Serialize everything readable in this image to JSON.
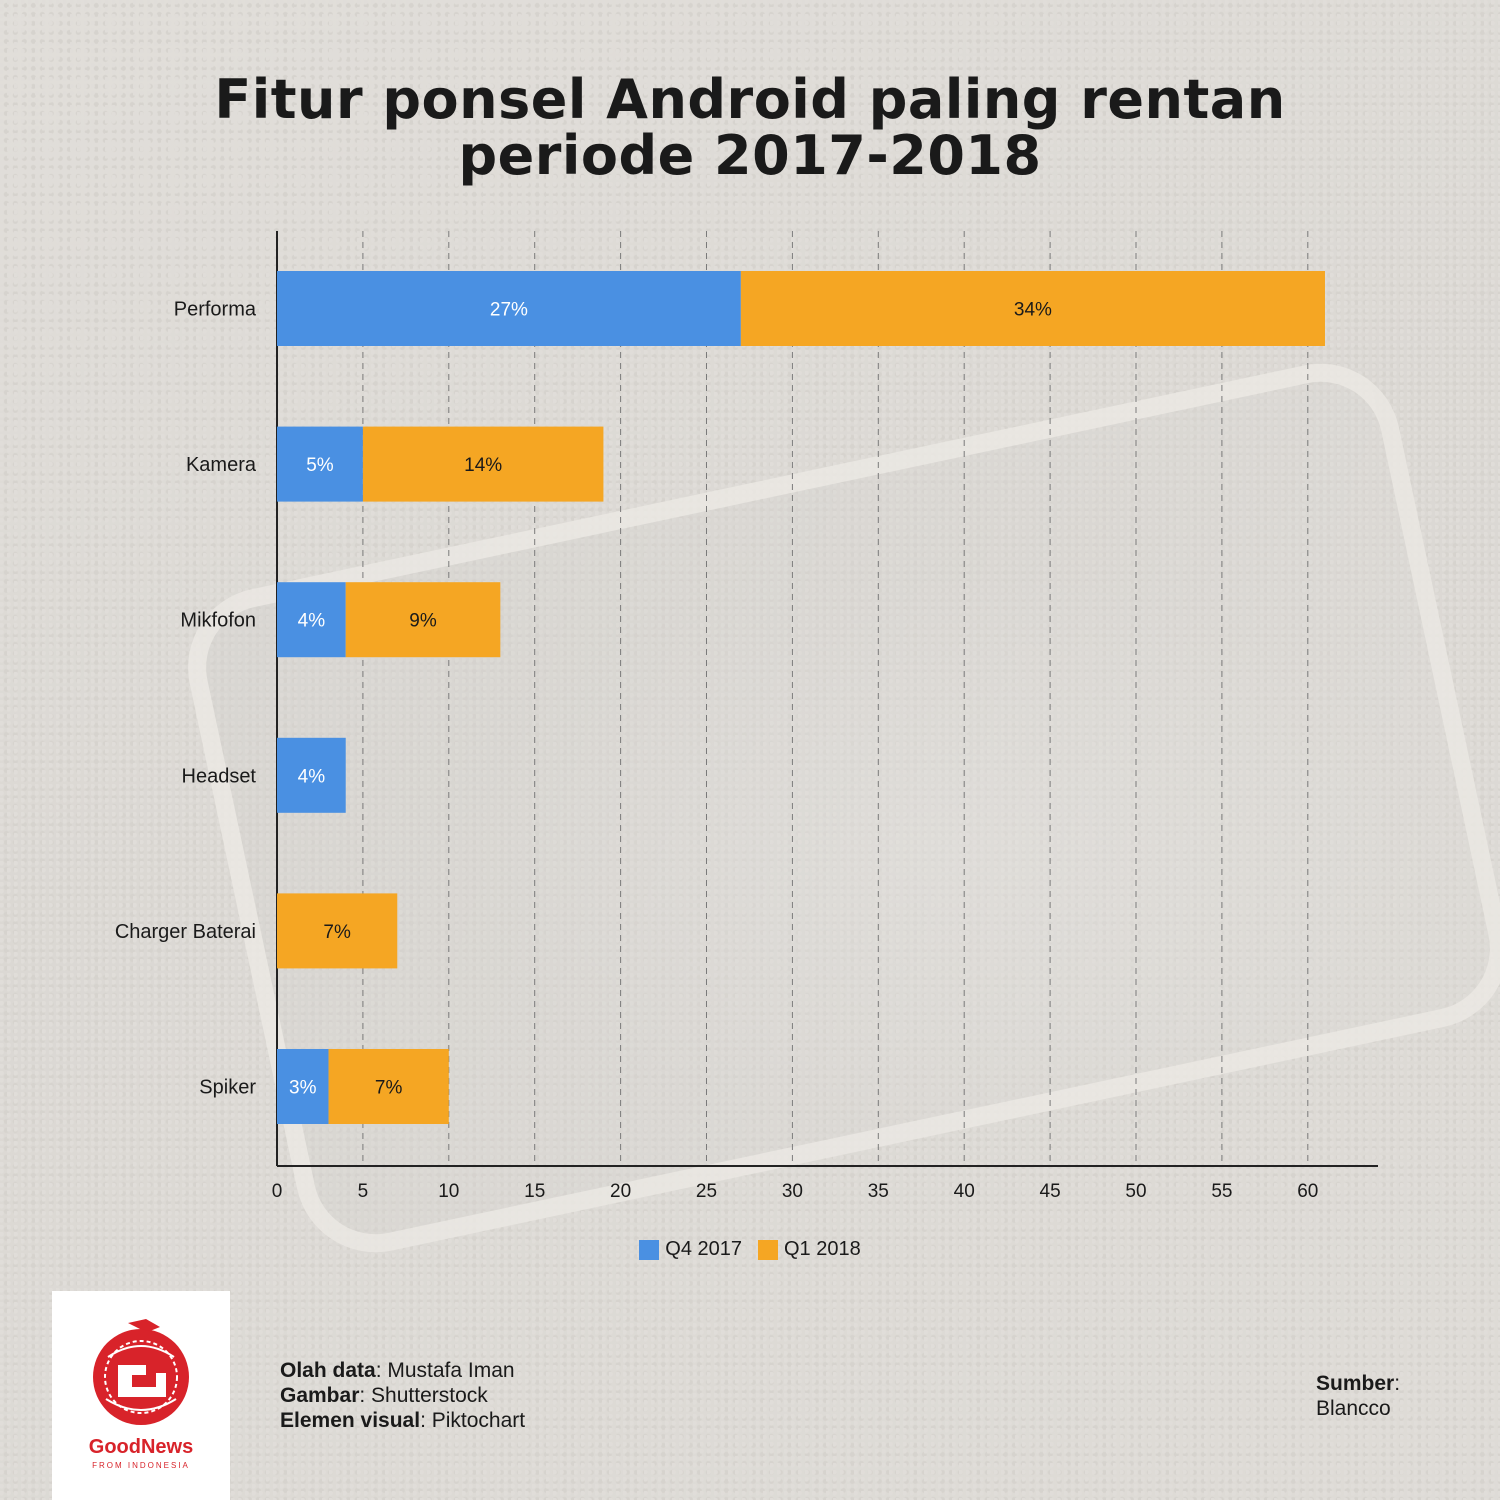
{
  "colors": {
    "q4": "#4a90e2",
    "q1": "#f5a623",
    "axis": "#222222",
    "grid": "#7a7a7a",
    "brand": "#d8232a"
  },
  "chart_data": {
    "type": "bar",
    "orientation": "horizontal",
    "stacked": true,
    "title": "Fitur ponsel Android paling rentan periode 2017-2018",
    "title_lines": [
      "Fitur ponsel Android paling rentan",
      "periode 2017-2018"
    ],
    "categories": [
      "Performa",
      "Kamera",
      "Mikfofon",
      "Headset",
      "Charger Baterai",
      "Spiker"
    ],
    "series": [
      {
        "name": "Q4 2017",
        "values": [
          27,
          5,
          4,
          4,
          0,
          3
        ],
        "labels": [
          "27%",
          "5%",
          "4%",
          "4%",
          "",
          "3%"
        ]
      },
      {
        "name": "Q1 2018",
        "values": [
          34,
          14,
          9,
          0,
          7,
          7
        ],
        "labels": [
          "34%",
          "14%",
          "9%",
          "",
          "7%",
          "7%"
        ]
      }
    ],
    "xlim": [
      0,
      64
    ],
    "xticks": [
      "0",
      "5",
      "10",
      "15",
      "20",
      "25",
      "30",
      "35",
      "40",
      "45",
      "50",
      "55",
      "60"
    ],
    "grid": "vertical dashed",
    "legend": "bottom"
  },
  "logo": {
    "name": "GoodNews",
    "sub": "FROM INDONESIA"
  },
  "credits": [
    {
      "key": "Olah data",
      "value": ": Mustafa Iman"
    },
    {
      "key": "Gambar",
      "value": ": Shutterstock"
    },
    {
      "key": "Elemen visual",
      "value": ": Piktochart"
    }
  ],
  "source": {
    "key": "Sumber",
    "colon": ":",
    "value": "Blancco"
  }
}
